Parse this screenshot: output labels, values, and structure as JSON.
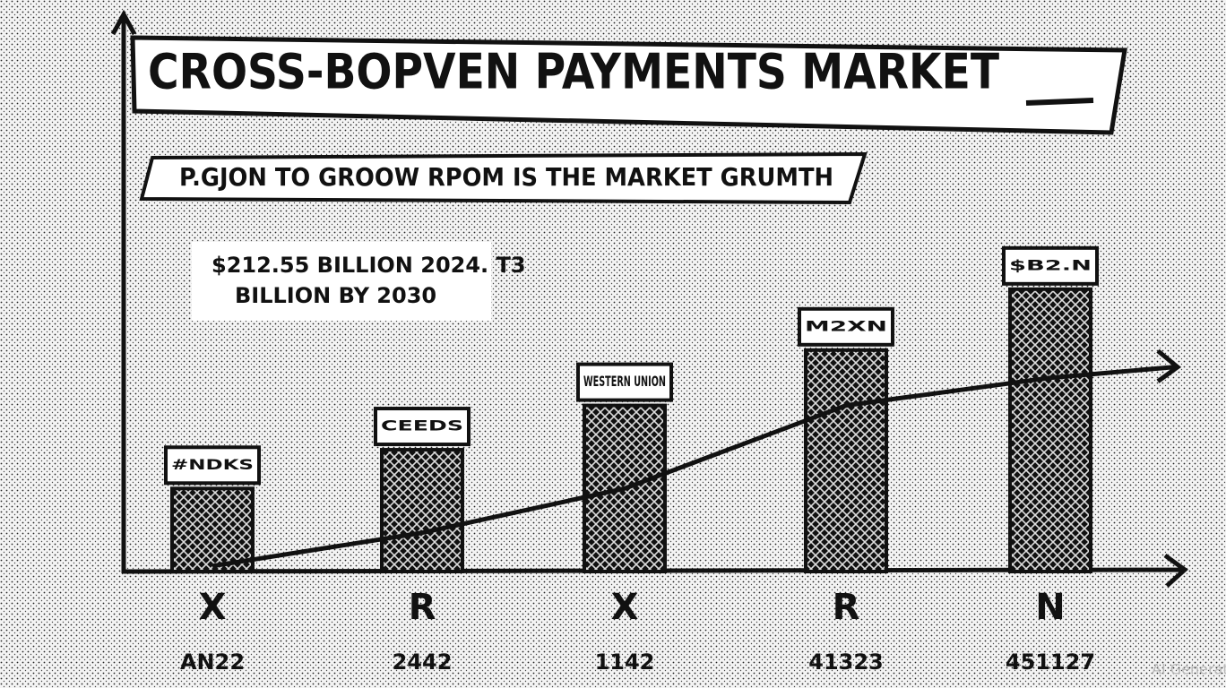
{
  "chart_data": {
    "type": "bar",
    "title": "CROSS-BOPVEN PAYMENTS MARKET",
    "subtitle": "P.GJON TO GROOW RPOM IS THE MARKET GRUMTH",
    "annotation": [
      "$212.55 BILLION 2024. T3",
      "BILLION BY 2030"
    ],
    "categories": [
      "X",
      "R",
      "X",
      "R",
      "N"
    ],
    "sublabels": [
      "AN22",
      "2442",
      "1142",
      "41323",
      "451127"
    ],
    "bar_labels": [
      "#NDKS",
      "CEEDS",
      "WESTERN UNION",
      "M2XN",
      "$B2.N"
    ],
    "values": [
      15,
      22,
      30,
      40,
      51
    ],
    "color": "#111111",
    "trend": {
      "values": [
        1,
        7,
        15,
        30,
        35
      ],
      "color": "#111111"
    },
    "ylim": [
      0,
      100
    ],
    "watermark": "AI Generated"
  }
}
